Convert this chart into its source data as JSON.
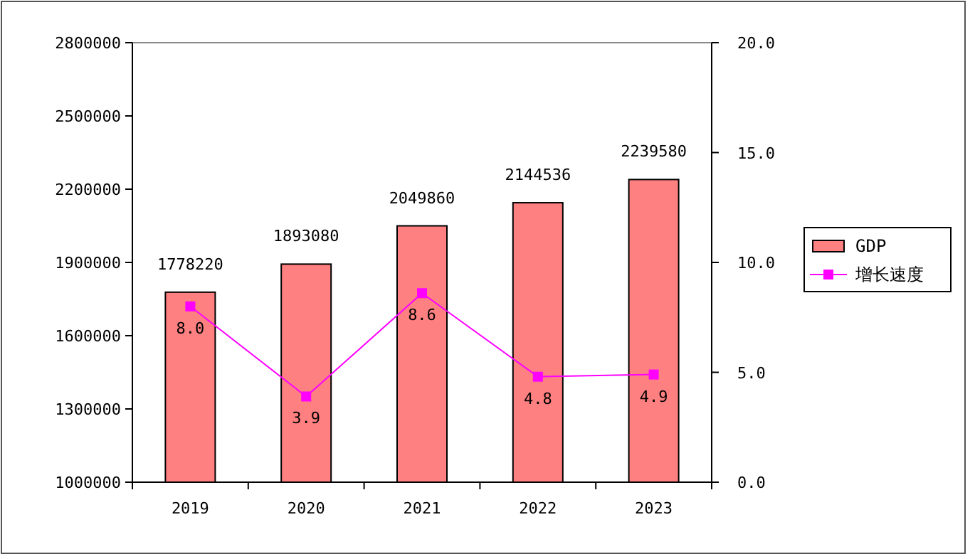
{
  "chart_data": {
    "type": "bar",
    "categories": [
      "2019",
      "2020",
      "2021",
      "2022",
      "2023"
    ],
    "series": [
      {
        "name": "GDP",
        "color": "#ff8080",
        "values": [
          1778220,
          1893080,
          2049860,
          2144536,
          2239580
        ],
        "value_labels": [
          "1778220",
          "1893080",
          "2049860",
          "2144536",
          "2239580"
        ]
      },
      {
        "name": "增长速度",
        "type": "line",
        "axis": "y2",
        "color": "#ff00ff",
        "marker": "square",
        "values": [
          8.0,
          3.9,
          8.6,
          4.8,
          4.9
        ],
        "value_labels": [
          "8.0",
          "3.9",
          "8.6",
          "4.8",
          "4.9"
        ]
      }
    ],
    "ylim": [
      1000000,
      2800000
    ],
    "yticks": [
      1000000,
      1300000,
      1600000,
      1900000,
      2200000,
      2500000,
      2800000
    ],
    "y2lim": [
      0,
      20
    ],
    "y2ticks": [
      {
        "value": 0,
        "label": "0.0"
      },
      {
        "value": 5,
        "label": "5.0"
      },
      {
        "value": 10,
        "label": "10.0"
      },
      {
        "value": 15,
        "label": "15.0"
      },
      {
        "value": 20,
        "label": "20.0"
      }
    ],
    "legend": "right",
    "grid": false
  }
}
